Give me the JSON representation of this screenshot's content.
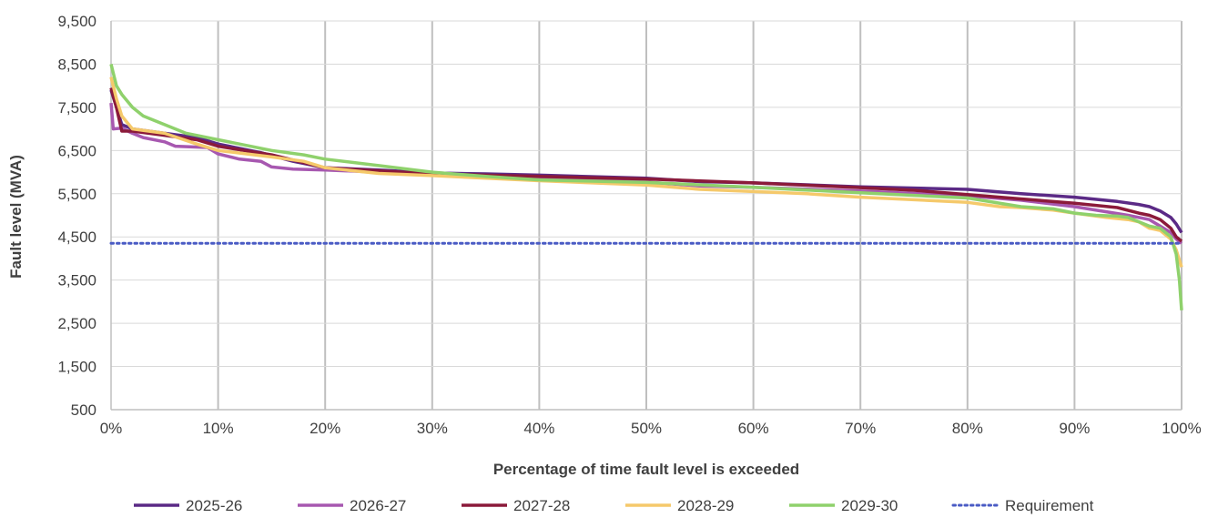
{
  "chart_data": {
    "type": "line",
    "title": "",
    "xlabel": "Percentage of time fault level is exceeded",
    "ylabel": "Fault level (MVA)",
    "xlim": [
      0,
      100
    ],
    "ylim": [
      500,
      9500
    ],
    "x_ticks": [
      0,
      10,
      20,
      30,
      40,
      50,
      60,
      70,
      80,
      90,
      100
    ],
    "x_tick_labels": [
      "0%",
      "10%",
      "20%",
      "30%",
      "40%",
      "50%",
      "60%",
      "70%",
      "80%",
      "90%",
      "100%"
    ],
    "y_ticks": [
      500,
      1500,
      2500,
      3500,
      4500,
      5500,
      6500,
      7500,
      8500,
      9500
    ],
    "y_tick_labels": [
      "500",
      "1,500",
      "2,500",
      "3,500",
      "4,500",
      "5,500",
      "6,500",
      "7,500",
      "8,500",
      "9,500"
    ],
    "grid": "vertical",
    "legend_position": "bottom",
    "series": [
      {
        "name": "2025-26",
        "color": "#5b2a86",
        "style": "solid",
        "points": [
          [
            0,
            7900
          ],
          [
            0.5,
            7500
          ],
          [
            1,
            7100
          ],
          [
            2,
            7000
          ],
          [
            5,
            6900
          ],
          [
            8,
            6800
          ],
          [
            10,
            6650
          ],
          [
            12,
            6550
          ],
          [
            14,
            6450
          ],
          [
            17,
            6250
          ],
          [
            20,
            6100
          ],
          [
            25,
            6050
          ],
          [
            30,
            5980
          ],
          [
            35,
            5960
          ],
          [
            40,
            5930
          ],
          [
            50,
            5860
          ],
          [
            55,
            5780
          ],
          [
            60,
            5750
          ],
          [
            70,
            5660
          ],
          [
            80,
            5600
          ],
          [
            85,
            5500
          ],
          [
            90,
            5420
          ],
          [
            94,
            5320
          ],
          [
            96,
            5250
          ],
          [
            97,
            5200
          ],
          [
            98,
            5100
          ],
          [
            99,
            4950
          ],
          [
            99.5,
            4800
          ],
          [
            100,
            4600
          ]
        ]
      },
      {
        "name": "2026-27",
        "color": "#a758b0",
        "style": "solid",
        "points": [
          [
            0,
            7600
          ],
          [
            0.2,
            7000
          ],
          [
            1,
            7020
          ],
          [
            2,
            6900
          ],
          [
            3,
            6800
          ],
          [
            5,
            6700
          ],
          [
            6,
            6600
          ],
          [
            9,
            6570
          ],
          [
            10,
            6420
          ],
          [
            12,
            6300
          ],
          [
            14,
            6250
          ],
          [
            15,
            6120
          ],
          [
            17,
            6070
          ],
          [
            20,
            6050
          ],
          [
            25,
            6000
          ],
          [
            30,
            5930
          ],
          [
            40,
            5850
          ],
          [
            50,
            5770
          ],
          [
            55,
            5680
          ],
          [
            60,
            5650
          ],
          [
            70,
            5560
          ],
          [
            80,
            5450
          ],
          [
            85,
            5350
          ],
          [
            90,
            5200
          ],
          [
            95,
            5000
          ],
          [
            97,
            4900
          ],
          [
            98,
            4750
          ],
          [
            99,
            4600
          ],
          [
            99.5,
            4450
          ],
          [
            100,
            4350
          ]
        ]
      },
      {
        "name": "2027-28",
        "color": "#8b1a3a",
        "style": "solid",
        "points": [
          [
            0,
            7950
          ],
          [
            0.5,
            7500
          ],
          [
            1,
            6950
          ],
          [
            2,
            6950
          ],
          [
            5,
            6850
          ],
          [
            8,
            6750
          ],
          [
            10,
            6600
          ],
          [
            15,
            6400
          ],
          [
            20,
            6100
          ],
          [
            25,
            6030
          ],
          [
            30,
            5960
          ],
          [
            35,
            5930
          ],
          [
            40,
            5900
          ],
          [
            50,
            5840
          ],
          [
            60,
            5750
          ],
          [
            70,
            5640
          ],
          [
            75,
            5580
          ],
          [
            80,
            5480
          ],
          [
            85,
            5380
          ],
          [
            90,
            5280
          ],
          [
            94,
            5180
          ],
          [
            96,
            5050
          ],
          [
            97,
            5000
          ],
          [
            98,
            4900
          ],
          [
            99,
            4700
          ],
          [
            99.5,
            4500
          ],
          [
            100,
            4400
          ]
        ]
      },
      {
        "name": "2028-29",
        "color": "#f5c96b",
        "style": "solid",
        "points": [
          [
            0,
            8200
          ],
          [
            0.5,
            7700
          ],
          [
            1,
            7300
          ],
          [
            2,
            7000
          ],
          [
            5,
            6900
          ],
          [
            8,
            6650
          ],
          [
            10,
            6500
          ],
          [
            15,
            6350
          ],
          [
            18,
            6250
          ],
          [
            20,
            6100
          ],
          [
            25,
            5970
          ],
          [
            30,
            5920
          ],
          [
            40,
            5800
          ],
          [
            50,
            5700
          ],
          [
            55,
            5600
          ],
          [
            60,
            5550
          ],
          [
            65,
            5500
          ],
          [
            70,
            5420
          ],
          [
            75,
            5360
          ],
          [
            80,
            5300
          ],
          [
            83,
            5200
          ],
          [
            85,
            5180
          ],
          [
            88,
            5120
          ],
          [
            90,
            5050
          ],
          [
            93,
            4950
          ],
          [
            95,
            4900
          ],
          [
            96,
            4850
          ],
          [
            97,
            4700
          ],
          [
            98,
            4650
          ],
          [
            99,
            4450
          ],
          [
            99.5,
            4200
          ],
          [
            100,
            3800
          ]
        ]
      },
      {
        "name": "2029-30",
        "color": "#8fd16c",
        "style": "solid",
        "points": [
          [
            0,
            8500
          ],
          [
            0.5,
            8000
          ],
          [
            1,
            7800
          ],
          [
            2,
            7500
          ],
          [
            3,
            7300
          ],
          [
            5,
            7100
          ],
          [
            7,
            6900
          ],
          [
            8,
            6850
          ],
          [
            10,
            6750
          ],
          [
            12,
            6650
          ],
          [
            15,
            6500
          ],
          [
            18,
            6400
          ],
          [
            20,
            6300
          ],
          [
            25,
            6150
          ],
          [
            30,
            6000
          ],
          [
            35,
            5900
          ],
          [
            40,
            5820
          ],
          [
            50,
            5760
          ],
          [
            60,
            5650
          ],
          [
            70,
            5520
          ],
          [
            80,
            5400
          ],
          [
            85,
            5200
          ],
          [
            88,
            5150
          ],
          [
            90,
            5050
          ],
          [
            92,
            5000
          ],
          [
            94,
            4980
          ],
          [
            95,
            4950
          ],
          [
            96,
            4850
          ],
          [
            97,
            4750
          ],
          [
            98,
            4700
          ],
          [
            99,
            4500
          ],
          [
            99.5,
            4100
          ],
          [
            99.8,
            3500
          ],
          [
            100,
            2800
          ]
        ]
      },
      {
        "name": "Requirement",
        "color": "#4a5bc4",
        "style": "dotted",
        "points": [
          [
            0,
            4350
          ],
          [
            100,
            4350
          ]
        ]
      }
    ]
  }
}
